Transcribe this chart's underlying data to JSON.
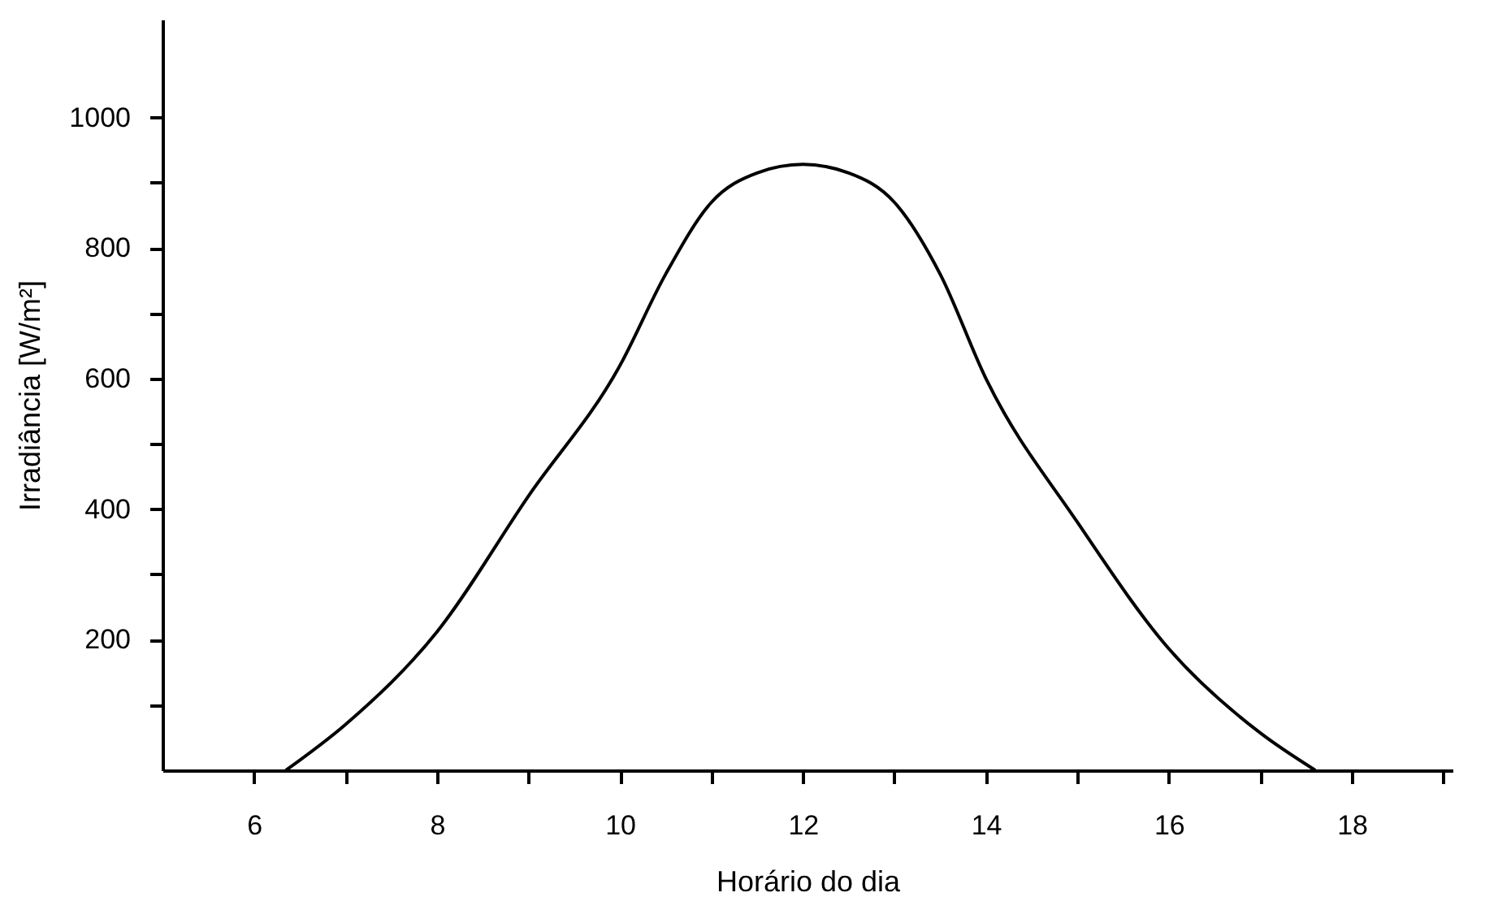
{
  "chart_data": {
    "type": "line",
    "xlabel": "Horário do dia",
    "ylabel": "Irradiância [W/m²]",
    "x": [
      6.35,
      7,
      8,
      9,
      10,
      10.5,
      11,
      11.5,
      12,
      12.5,
      13,
      13.5,
      14,
      15,
      16,
      17,
      17.6
    ],
    "series": [
      {
        "color": "#000000",
        "values": [
          0,
          70,
          212,
          420,
          620,
          760,
          870,
          915,
          928,
          915,
          870,
          760,
          600,
          380,
          186,
          57,
          0
        ]
      }
    ],
    "xlim": [
      5,
      19.1
    ],
    "ylim": [
      0,
      1150
    ],
    "xticks": [
      6,
      {
        "value": 7,
        "label": null
      },
      8,
      {
        "value": 9,
        "label": null
      },
      10,
      {
        "value": 11,
        "label": null
      },
      12,
      {
        "value": 13,
        "label": null
      },
      14,
      {
        "value": 15,
        "label": null
      },
      16,
      {
        "value": 17,
        "label": null
      },
      18,
      {
        "value": 19,
        "label": null
      }
    ],
    "yticks": [
      {
        "value": 100,
        "label": null
      },
      200,
      {
        "value": 300,
        "label": null
      },
      400,
      {
        "value": 500,
        "label": null
      },
      600,
      {
        "value": 700,
        "label": null
      },
      800,
      {
        "value": 900,
        "label": null
      },
      1000
    ],
    "grid": false,
    "marker": "none",
    "line_style": "solid"
  }
}
